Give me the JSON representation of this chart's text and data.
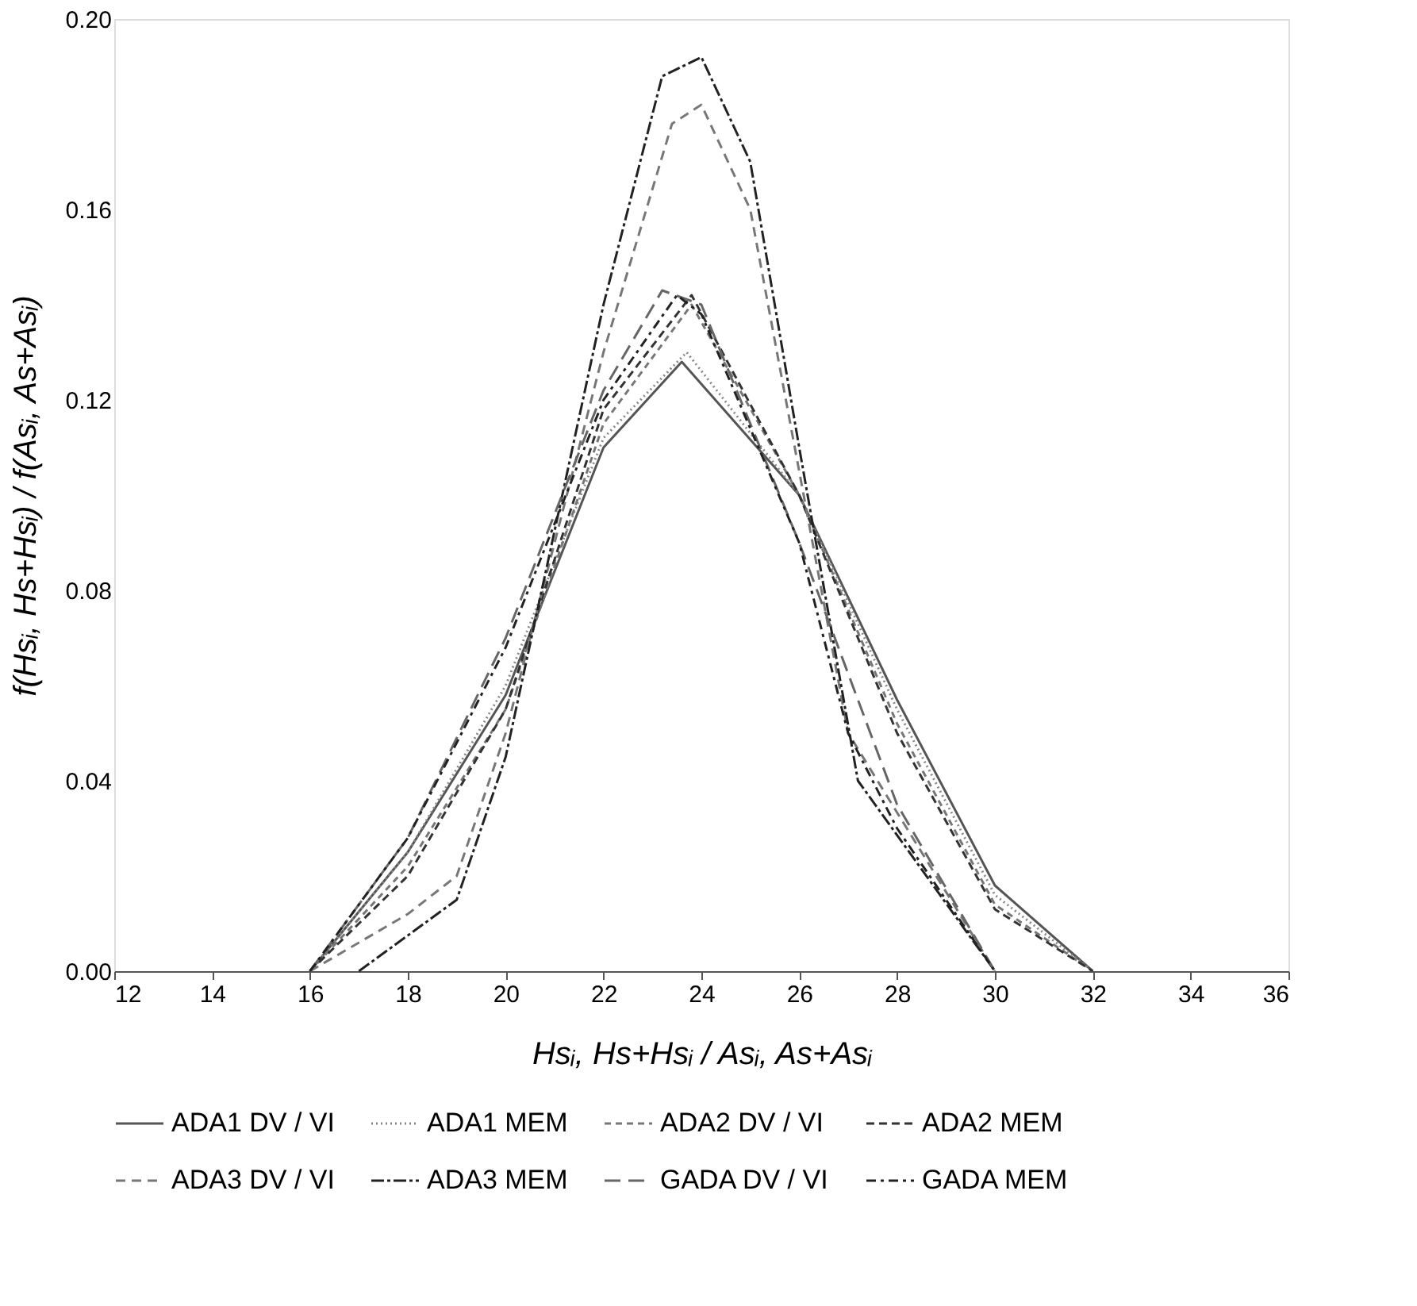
{
  "chart_data": {
    "type": "line",
    "xlabel": "Hsᵢ, Hs+Hsᵢ / Asᵢ, As+Asᵢ",
    "ylabel": "f(Hsᵢ, Hs+Hsᵢ) / f(Asᵢ, As+Asᵢ)",
    "xlim": [
      12,
      36
    ],
    "xticks": [
      12,
      14,
      16,
      18,
      20,
      22,
      24,
      26,
      28,
      30,
      32,
      34,
      36
    ],
    "ylim": [
      0,
      0.2
    ],
    "yticks": [
      {
        "value": 0,
        "label": "0.00"
      },
      {
        "value": 0.04,
        "label": "0.04"
      },
      {
        "value": 0.08,
        "label": "0.08"
      },
      {
        "value": 0.12,
        "label": "0.12"
      },
      {
        "value": 0.16,
        "label": "0.16"
      },
      {
        "value": 0.2,
        "label": "0.20"
      }
    ],
    "grid": false,
    "legend": "bottom",
    "marker": "none",
    "series": [
      {
        "name": "ADA1 DV / VI",
        "color": "#555555",
        "line_style": "solid",
        "x": [
          16,
          18,
          20,
          22,
          23.6,
          26,
          28,
          30,
          32
        ],
        "values": [
          0,
          0.025,
          0.058,
          0.11,
          0.128,
          0.1,
          0.057,
          0.018,
          0
        ]
      },
      {
        "name": "ADA1 MEM",
        "color": "#888888",
        "line_style": "dotted",
        "x": [
          16,
          18,
          20,
          22,
          23.7,
          26,
          28,
          30,
          32
        ],
        "values": [
          0,
          0.025,
          0.06,
          0.112,
          0.13,
          0.1,
          0.055,
          0.016,
          0
        ]
      },
      {
        "name": "ADA2 DV / VI",
        "color": "#777777",
        "line_style": "dashed",
        "x": [
          16,
          18,
          20,
          22,
          23.8,
          26,
          28,
          30,
          32
        ],
        "values": [
          0,
          0.022,
          0.055,
          0.115,
          0.14,
          0.1,
          0.052,
          0.014,
          0
        ]
      },
      {
        "name": "ADA2 MEM",
        "color": "#333333",
        "line_style": "dashed",
        "x": [
          16,
          18,
          20,
          22,
          23.8,
          26,
          28,
          30,
          32
        ],
        "values": [
          0,
          0.02,
          0.055,
          0.118,
          0.142,
          0.1,
          0.05,
          0.013,
          0
        ]
      },
      {
        "name": "ADA3 DV / VI",
        "color": "#777777",
        "line_style": "dashed",
        "x": [
          16,
          18,
          19,
          20,
          22,
          23.4,
          24,
          25,
          26,
          27,
          30
        ],
        "values": [
          0,
          0.012,
          0.02,
          0.05,
          0.13,
          0.178,
          0.182,
          0.16,
          0.105,
          0.05,
          0
        ]
      },
      {
        "name": "ADA3 MEM",
        "color": "#222222",
        "line_style": "dashed",
        "x": [
          17,
          19,
          20,
          22,
          23.2,
          24,
          25,
          26,
          27.2,
          30
        ],
        "values": [
          0,
          0.015,
          0.045,
          0.14,
          0.188,
          0.192,
          0.17,
          0.11,
          0.04,
          0
        ]
      },
      {
        "name": "GADA DV / VI",
        "color": "#666666",
        "line_style": "dashed",
        "x": [
          16,
          18,
          20,
          22,
          23.2,
          24,
          26,
          28,
          30
        ],
        "values": [
          0,
          0.028,
          0.07,
          0.122,
          0.143,
          0.14,
          0.09,
          0.035,
          0
        ]
      },
      {
        "name": "GADA MEM",
        "color": "#222222",
        "line_style": "dashed",
        "x": [
          16,
          18,
          20,
          22,
          23.5,
          24,
          26,
          27,
          28,
          30
        ],
        "values": [
          0,
          0.028,
          0.068,
          0.12,
          0.142,
          0.138,
          0.09,
          0.05,
          0.03,
          0
        ]
      }
    ]
  }
}
